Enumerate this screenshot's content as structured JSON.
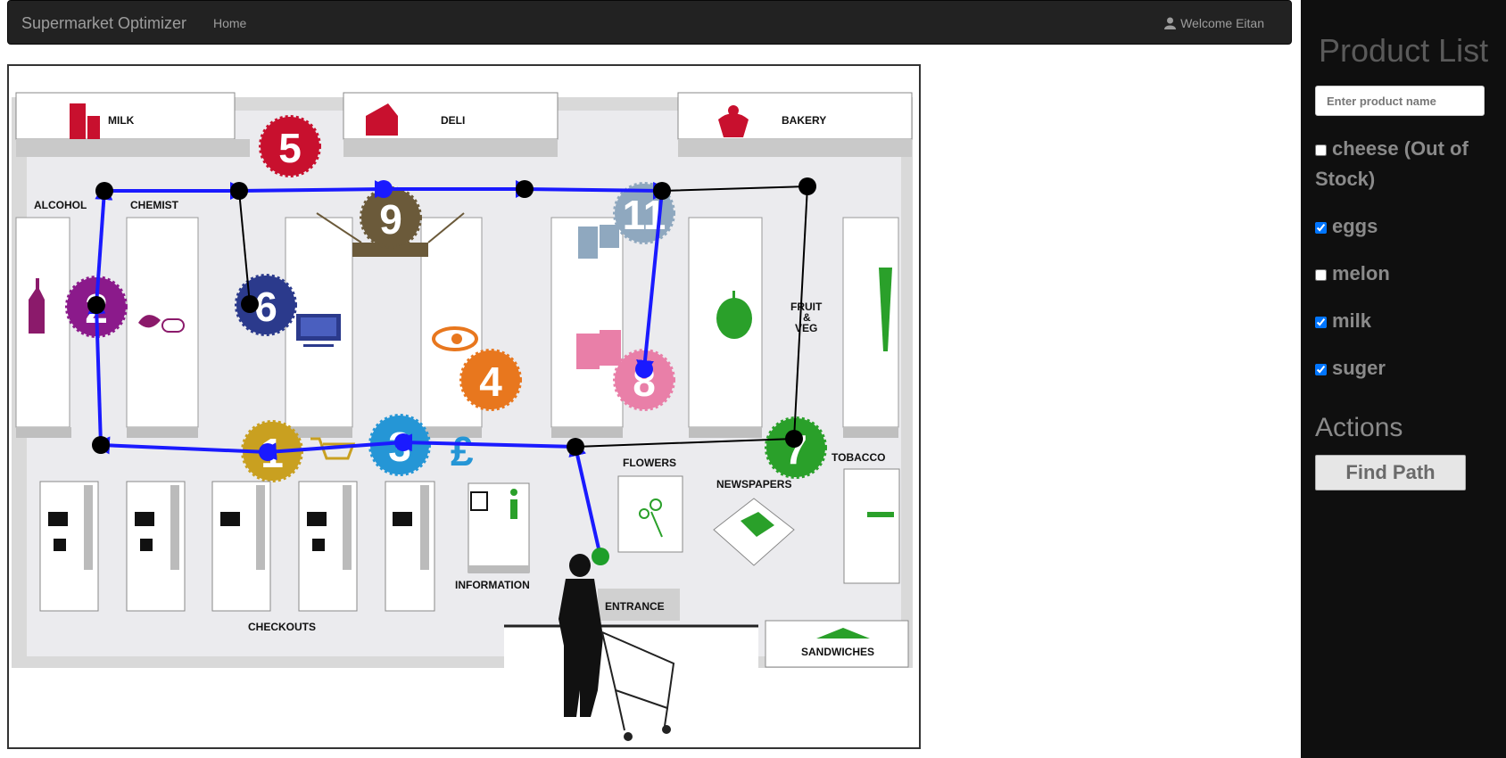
{
  "navbar": {
    "brand": "Supermarket Optimizer",
    "home": "Home",
    "welcome": "Welcome Eitan"
  },
  "map": {
    "sections": {
      "milk": "MILK",
      "deli": "DELI",
      "bakery": "BAKERY",
      "alcohol": "ALCOHOL",
      "chemist": "CHEMIST",
      "fruit_veg_1": "FRUIT",
      "fruit_veg_2": "&",
      "fruit_veg_3": "VEG",
      "tobacco": "TOBACCO",
      "flowers": "FLOWERS",
      "newspapers": "NEWSPAPERS",
      "information": "INFORMATION",
      "entrance": "ENTRANCE",
      "checkouts": "CHECKOUTS",
      "sandwiches": "SANDWICHES"
    },
    "badges": [
      "5",
      "9",
      "11",
      "6",
      "4",
      "8",
      "1",
      "3",
      "7",
      "2"
    ],
    "colors": {
      "path": "#1a1aff",
      "inactive_path": "#000000",
      "start": "#1e9e2a"
    }
  },
  "sidebar": {
    "title": "Product List",
    "search_placeholder": "Enter product name",
    "products": [
      {
        "label": "cheese (Out of Stock)",
        "checked": false
      },
      {
        "label": "eggs",
        "checked": true
      },
      {
        "label": "melon",
        "checked": false
      },
      {
        "label": "milk",
        "checked": true
      },
      {
        "label": "suger",
        "checked": true
      }
    ],
    "actions_title": "Actions",
    "find_button": "Find Path"
  }
}
